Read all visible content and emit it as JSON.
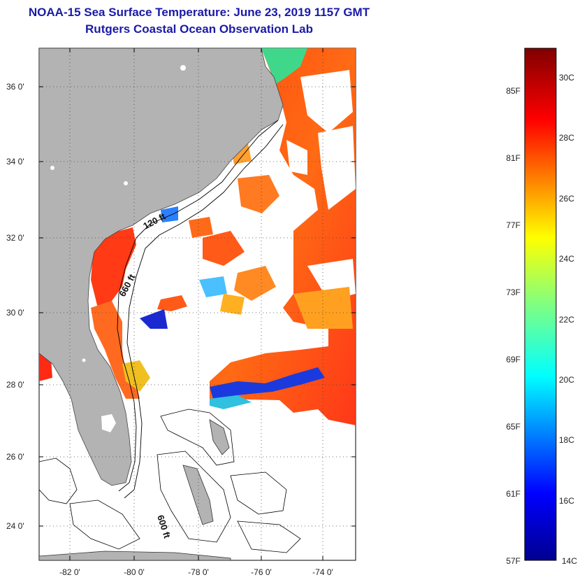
{
  "header": {
    "title_line1": "NOAA-15 Sea Surface Temperature:  June 23, 2019 1157 GMT",
    "title_line2": "Rutgers Coastal Ocean Observation Lab"
  },
  "map": {
    "lat_labels": [
      "36 0'",
      "34 0'",
      "32 0'",
      "30 0'",
      "28 0'",
      "26 0'",
      "24 0'"
    ],
    "lon_labels": [
      "-82 0'",
      "-80 0'",
      "-78 0'",
      "-76 0'",
      "-74 0'"
    ],
    "depth_labels": [
      "120 ft",
      "660 ft",
      "600 ft"
    ],
    "colors": {
      "land": "#b3b3b3",
      "warm": "#ff3a12",
      "cold": "#1234d8"
    }
  },
  "colorbar": {
    "fahrenheit": [
      "85F",
      "81F",
      "77F",
      "73F",
      "69F",
      "65F",
      "61F",
      "57F"
    ],
    "celsius": [
      "30C",
      "28C",
      "26C",
      "24C",
      "22C",
      "20C",
      "18C",
      "16C",
      "14C"
    ]
  }
}
